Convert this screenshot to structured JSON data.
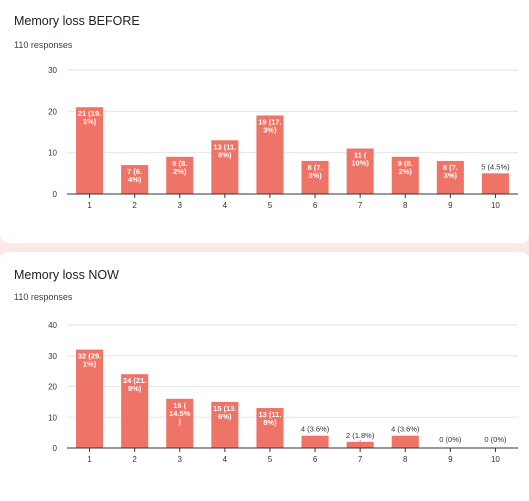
{
  "colors": {
    "bar": "#ee7467",
    "background": "#fce8e6",
    "card": "#ffffff"
  },
  "chart_data": [
    {
      "type": "bar",
      "title": "Memory loss BEFORE",
      "subtitle": "110 responses",
      "categories": [
        "1",
        "2",
        "3",
        "4",
        "5",
        "6",
        "7",
        "8",
        "9",
        "10"
      ],
      "values": [
        21,
        7,
        9,
        13,
        19,
        8,
        11,
        9,
        8,
        5
      ],
      "labels": [
        "21 (19.\n1%)",
        "7 (6.\n4%)",
        "9 (8.\n2%)",
        "13 (11.\n8%)",
        "19 (17.\n3%)",
        "8 (7.\n3%)",
        "11 (\n10%)",
        "9 (8.\n2%)",
        "8 (7.\n3%)",
        "5 (4.5%)"
      ],
      "yticks": [
        0,
        10,
        20,
        30
      ],
      "ylim": [
        0,
        30
      ],
      "grid": true
    },
    {
      "type": "bar",
      "title": "Memory loss NOW",
      "subtitle": "110 responses",
      "categories": [
        "1",
        "2",
        "3",
        "4",
        "5",
        "6",
        "7",
        "8",
        "9",
        "10"
      ],
      "values": [
        32,
        24,
        16,
        15,
        13,
        4,
        2,
        4,
        0,
        0
      ],
      "labels": [
        "32 (29.\n1%)",
        "24 (21.\n8%)",
        "16 (\n14.5%\n)",
        "15 (13.\n6%)",
        "13 (11.\n8%)",
        "4 (3.6%)",
        "2 (1.8%)",
        "4 (3.6%)",
        "0 (0%)",
        "0 (0%)"
      ],
      "yticks": [
        0,
        10,
        20,
        30,
        40
      ],
      "ylim": [
        0,
        40
      ],
      "grid": true
    }
  ]
}
